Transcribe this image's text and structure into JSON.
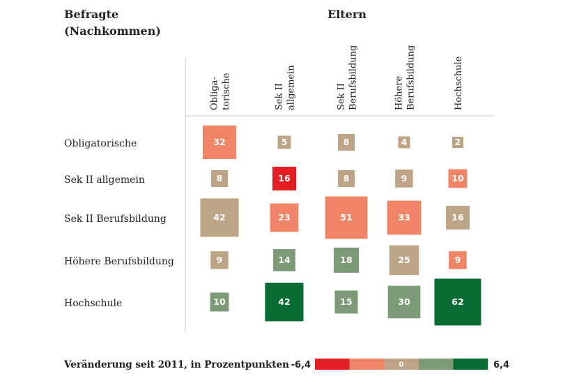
{
  "chart_data": {
    "type": "heatmap",
    "title_rows": [
      "Befragte",
      "(Nachkommen)"
    ],
    "title_cols": "Eltern",
    "row_labels": [
      "Obligatorische",
      "Sek II allgemein",
      "Sek II Berufsbildung",
      "Höhere Berufsbildung",
      "Hochschule"
    ],
    "col_labels": [
      [
        "Obliga-",
        "torische"
      ],
      [
        "Sek II",
        "allgemein"
      ],
      [
        "Sek II",
        "Berufsbildung"
      ],
      [
        "Höhere",
        "Berufsbildung"
      ],
      [
        "Hochschule"
      ]
    ],
    "values": [
      [
        32,
        5,
        8,
        4,
        2
      ],
      [
        8,
        16,
        8,
        9,
        10
      ],
      [
        42,
        23,
        51,
        33,
        16
      ],
      [
        9,
        14,
        18,
        25,
        9
      ],
      [
        10,
        42,
        15,
        30,
        62
      ]
    ],
    "change_class": [
      [
        "neg_medium",
        "neutral",
        "neutral",
        "neutral",
        "neutral"
      ],
      [
        "neutral",
        "neg_strong",
        "neutral",
        "neutral",
        "neg_medium"
      ],
      [
        "neutral",
        "neg_medium",
        "neg_medium",
        "neg_medium",
        "neutral"
      ],
      [
        "neutral",
        "pos_medium",
        "pos_medium",
        "neutral",
        "neg_medium"
      ],
      [
        "pos_medium",
        "pos_strong",
        "pos_medium",
        "pos_medium",
        "pos_strong"
      ]
    ],
    "colors": {
      "neg_strong": "#e31e24",
      "neg_medium": "#ef8566",
      "neutral": "#bda486",
      "pos_medium": "#7c9a76",
      "pos_strong": "#0a6a34"
    },
    "legend": {
      "title": "Veränderung seit 2011, in Prozentpunkten",
      "min_label": "-6,4",
      "max_label": "6,4",
      "zero_label": "0",
      "classes": [
        "neg_strong",
        "neg_medium",
        "neutral",
        "pos_medium",
        "pos_strong"
      ],
      "range": [
        -6.4,
        6.4
      ]
    }
  }
}
